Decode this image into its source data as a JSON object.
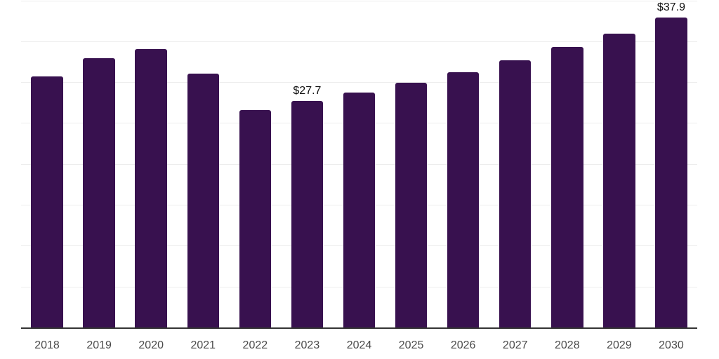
{
  "chart_data": {
    "type": "bar",
    "title": "",
    "xlabel": "",
    "ylabel": "",
    "categories": [
      "2018",
      "2019",
      "2020",
      "2021",
      "2022",
      "2023",
      "2024",
      "2025",
      "2026",
      "2027",
      "2028",
      "2029",
      "2030"
    ],
    "values": [
      30.7,
      32.9,
      34.0,
      31.0,
      26.6,
      27.7,
      28.7,
      29.9,
      31.2,
      32.7,
      34.3,
      35.9,
      37.9
    ],
    "point_labels": [
      {
        "category": "2023",
        "text": "$27.7"
      },
      {
        "category": "2030",
        "text": "$37.9"
      }
    ],
    "unit_prefix": "$",
    "ylim": [
      0,
      40
    ],
    "gridline_step": 5,
    "grid": "horizontal",
    "legend": "none",
    "y_axis_tick_labels": "none",
    "colors": {
      "bar": "#38114f",
      "axis_line": "#333333",
      "gridline": "#ededed",
      "tick_label": "#4a4a4a",
      "data_label": "#111111",
      "background": "#ffffff"
    }
  }
}
